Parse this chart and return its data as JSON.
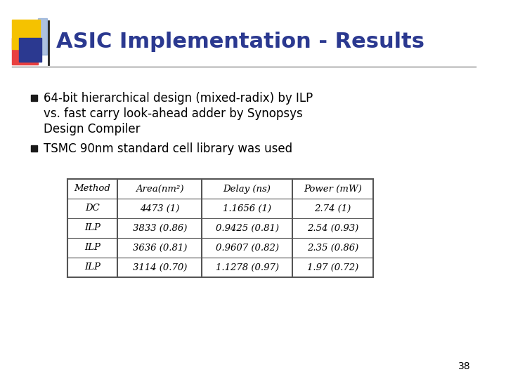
{
  "title": "ASIC Implementation - Results",
  "title_color": "#2B3990",
  "title_fontsize": 22,
  "background_color": "#FFFFFF",
  "bullet1_line1": "64-bit hierarchical design (mixed-radix) by ILP",
  "bullet1_line2": "vs. fast carry look-ahead adder by Synopsys",
  "bullet1_line3": "Design Compiler",
  "bullet2": "TSMC 90nm standard cell library was used",
  "table_headers": [
    "Method",
    "Area(nm²)",
    "Delay (ns)",
    "Power (mW)"
  ],
  "table_rows": [
    [
      "DC",
      "4473 (1)",
      "1.1656 (1)",
      "2.74 (1)"
    ],
    [
      "ILP",
      "3833 (0.86)",
      "0.9425 (0.81)",
      "2.54 (0.93)"
    ],
    [
      "ILP",
      "3636 (0.81)",
      "0.9607 (0.82)",
      "2.35 (0.86)"
    ],
    [
      "ILP",
      "3114 (0.70)",
      "1.1278 (0.97)",
      "1.97 (0.72)"
    ]
  ],
  "page_number": "38",
  "accent_yellow": "#F5C200",
  "accent_red": "#E84040",
  "accent_blue": "#2B3990",
  "accent_lightblue": "#7799CC",
  "text_color": "#000000",
  "table_font": "DejaVu Serif",
  "body_font": "DejaVu Sans",
  "sep_line_color": "#888888",
  "table_line_color": "#555555",
  "bullet_color": "#1A1A1A"
}
